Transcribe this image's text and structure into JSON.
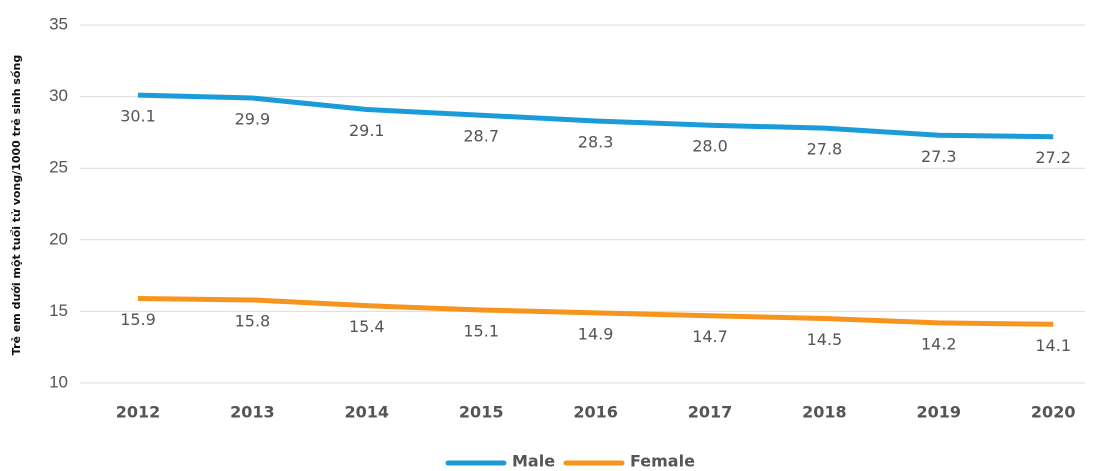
{
  "chart_data": {
    "type": "line",
    "ylabel": "Trẻ em dưới một tuổi tử vong/1000 trẻ sinh sống",
    "categories": [
      "2012",
      "2013",
      "2014",
      "2015",
      "2016",
      "2017",
      "2018",
      "2019",
      "2020"
    ],
    "series": [
      {
        "name": "Male",
        "color": "#1b9bd7",
        "values": [
          30.1,
          29.9,
          29.1,
          28.7,
          28.3,
          28.0,
          27.8,
          27.3,
          27.2
        ],
        "value_labels": [
          "30.1",
          "29.9",
          "29.1",
          "28.7",
          "28.3",
          "28.0",
          "27.8",
          "27.3",
          "27.2"
        ]
      },
      {
        "name": "Female",
        "color": "#f7941d",
        "values": [
          15.9,
          15.8,
          15.4,
          15.1,
          14.9,
          14.7,
          14.5,
          14.2,
          14.1
        ],
        "value_labels": [
          "15.9",
          "15.8",
          "15.4",
          "15.1",
          "14.9",
          "14.7",
          "14.5",
          "14.2",
          "14.1"
        ]
      }
    ],
    "ylim": [
      10,
      35
    ],
    "yticks": [
      10,
      15,
      20,
      25,
      30,
      35
    ],
    "grid": true,
    "legend": "bottom"
  }
}
